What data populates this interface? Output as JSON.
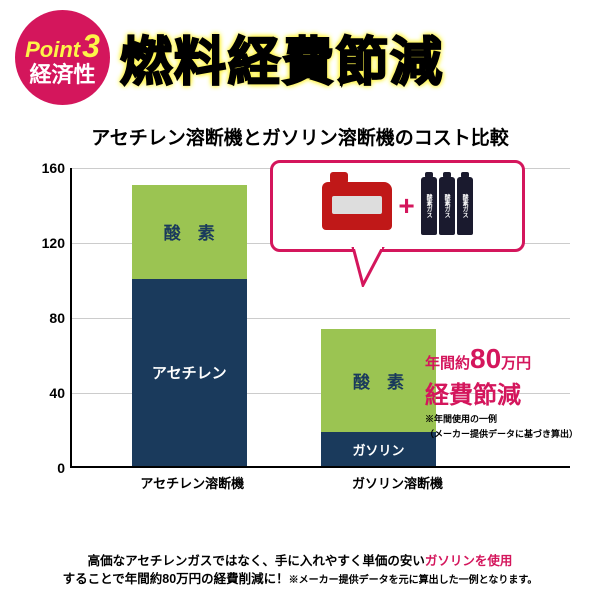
{
  "badge": {
    "point": "Point",
    "num": "3",
    "sub": "経済性"
  },
  "title": "燃料経費節減",
  "subtitle": "アセチレン溶断機とガソリン溶断機のコスト比較",
  "chart": {
    "type": "stacked-bar",
    "ylim": [
      0,
      160
    ],
    "ytick_step": 40,
    "yticks": [
      "0",
      "40",
      "80",
      "120",
      "160"
    ],
    "grid_color": "#cccccc",
    "colors": {
      "oxygen": "#9bc452",
      "fuel": "#1a3a5c",
      "oxygen_text": "#1a3a5c",
      "fuel_text": "#ffffff"
    },
    "bars": [
      {
        "x_pct": 12,
        "label": "アセチレン溶断機",
        "segments": [
          {
            "name": "アセチレン",
            "value": 100,
            "color": "fuel",
            "text_color": "fuel_text",
            "fontsize": 15
          },
          {
            "name": "酸　素",
            "value": 50,
            "color": "oxygen",
            "text_color": "oxygen_text",
            "fontsize": 17
          }
        ]
      },
      {
        "x_pct": 50,
        "label": "ガソリン溶断機",
        "segments": [
          {
            "name": "ガソリン",
            "value": 18,
            "color": "fuel",
            "text_color": "fuel_text",
            "fontsize": 13
          },
          {
            "name": "酸　素",
            "value": 55,
            "color": "oxygen",
            "text_color": "oxygen_text",
            "fontsize": 17
          }
        ]
      }
    ]
  },
  "callout": {
    "plus": "+",
    "cylinder_label": "酸素ガス",
    "border": "#d4165c"
  },
  "savings": {
    "l1_pre": "年間約",
    "l1_big": "80",
    "l1_suf": "万円",
    "l2": "経費節減",
    "note1": "※年間使用の一例",
    "note2": "（メーカー提供データに基づき算出）"
  },
  "footer": {
    "t1": "高価なアセチレンガスではなく、手に入れやすく単価の安い",
    "hl": "ガソリンを使用",
    "t2": "することで年間約80万円の経費削減に！",
    "sm": "※メーカー提供データを元に算出した一例となります。"
  }
}
